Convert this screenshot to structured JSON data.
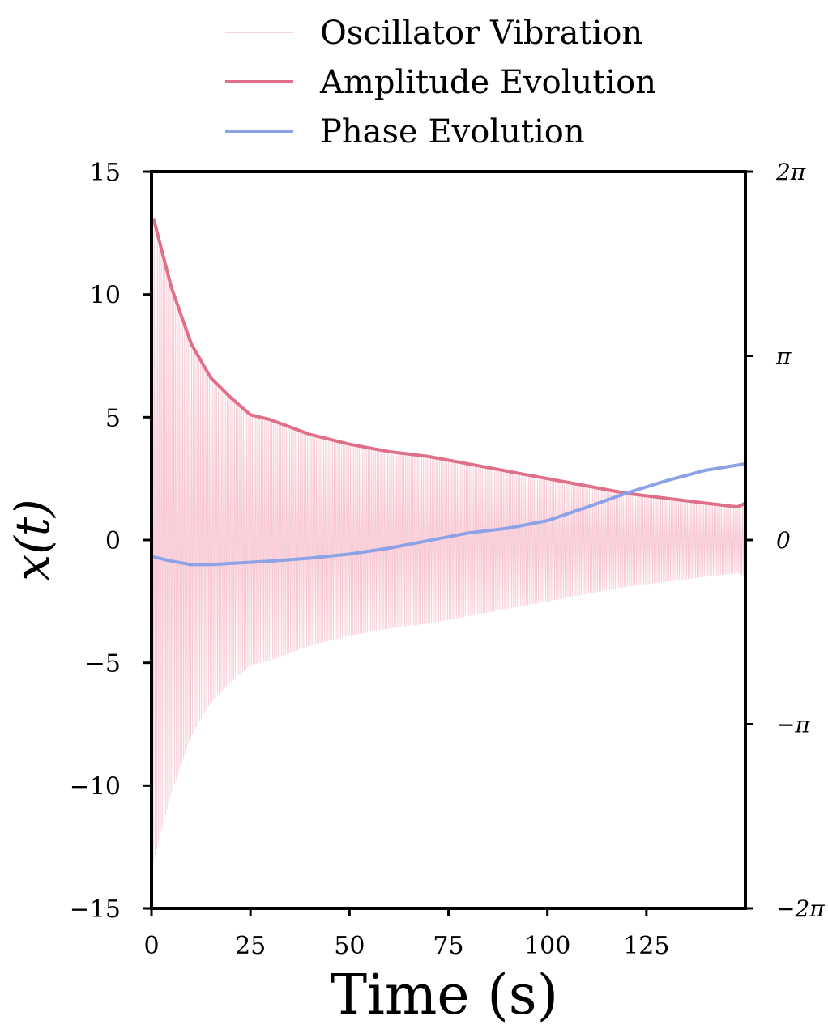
{
  "chart_data": {
    "type": "line",
    "xlabel": "Time (s)",
    "ylabel": "x(t)",
    "xlim": [
      0,
      150
    ],
    "ylim": [
      -15,
      15
    ],
    "y2lim": [
      -6.2832,
      6.2832
    ],
    "grid": false,
    "legend_position": "top-center",
    "x_ticks": [
      {
        "value": 0,
        "label": "0"
      },
      {
        "value": 25,
        "label": "25"
      },
      {
        "value": 50,
        "label": "50"
      },
      {
        "value": 75,
        "label": "75"
      },
      {
        "value": 100,
        "label": "100"
      },
      {
        "value": 125,
        "label": "125"
      }
    ],
    "y_ticks": [
      {
        "value": 15,
        "label": "15"
      },
      {
        "value": 10,
        "label": "10"
      },
      {
        "value": 5,
        "label": "5"
      },
      {
        "value": 0,
        "label": "0"
      },
      {
        "value": -5,
        "label": "−5"
      },
      {
        "value": -10,
        "label": "−10"
      },
      {
        "value": -15,
        "label": "−15"
      }
    ],
    "y2_ticks": [
      {
        "value": 6.2832,
        "label": "2π"
      },
      {
        "value": 3.1416,
        "label": "π"
      },
      {
        "value": 0,
        "label": "0"
      },
      {
        "value": -3.1416,
        "label": "−π"
      },
      {
        "value": -6.2832,
        "label": "−2π"
      }
    ],
    "series": [
      {
        "name": "Oscillator Vibration",
        "color": "#f7c3cf",
        "axis": "left",
        "style": "oscillation",
        "cycles": 400
      },
      {
        "name": "Amplitude Evolution",
        "color": "#e07088",
        "axis": "left",
        "x": [
          0.5,
          5,
          10,
          15,
          20,
          25,
          30,
          40,
          50,
          60,
          70,
          80,
          90,
          100,
          110,
          120,
          130,
          140,
          148,
          150
        ],
        "y": [
          13.1,
          10.3,
          8.0,
          6.6,
          5.8,
          5.1,
          4.9,
          4.3,
          3.9,
          3.6,
          3.4,
          3.1,
          2.8,
          2.5,
          2.2,
          1.9,
          1.7,
          1.5,
          1.35,
          1.5
        ]
      },
      {
        "name": "Phase Evolution",
        "color": "#8ca2e6",
        "axis": "right",
        "x": [
          0,
          5,
          10,
          15,
          20,
          30,
          40,
          50,
          60,
          70,
          80,
          90,
          100,
          110,
          120,
          130,
          140,
          150
        ],
        "y": [
          -0.28,
          -0.36,
          -0.42,
          -0.42,
          -0.4,
          -0.36,
          -0.31,
          -0.24,
          -0.14,
          -0.01,
          0.12,
          0.2,
          0.33,
          0.56,
          0.8,
          1.01,
          1.19,
          1.3
        ]
      }
    ]
  }
}
